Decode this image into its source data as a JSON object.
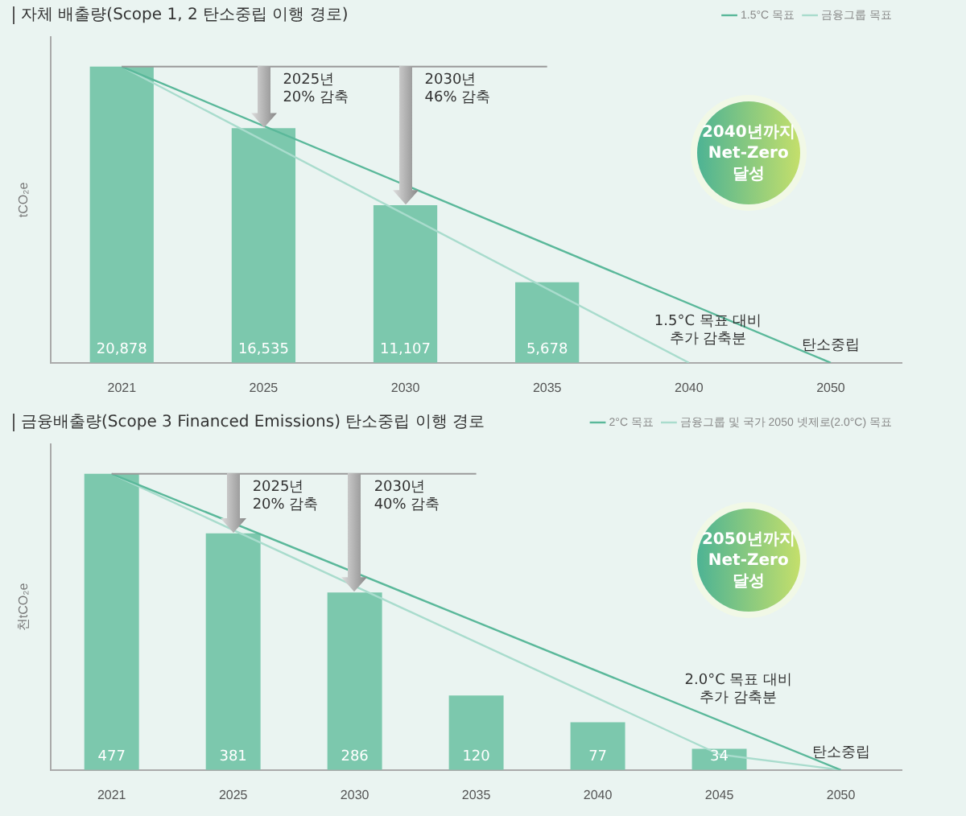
{
  "chart_data": [
    {
      "type": "bar",
      "title": "자체 배출량(Scope 1, 2 탄소중립 이행 경로)",
      "ylabel": "tCO₂e",
      "categories": [
        "2021",
        "2025",
        "2030",
        "2035",
        "2040",
        "2050"
      ],
      "legend": "top right",
      "marker": "none",
      "series": [
        {
          "color": "#7cc8ad",
          "values": [
            20878,
            16535,
            11107,
            5678,
            null,
            null
          ],
          "value_labels": [
            "20,878",
            "16,535",
            "11,107",
            "5,678",
            null,
            null
          ]
        },
        {
          "type": "line",
          "name": "1.5°C 목표",
          "color": "#5ab89a",
          "values": [
            20878,
            null,
            null,
            null,
            null,
            0
          ]
        },
        {
          "type": "line",
          "name": "금융그룹 목표",
          "color": "#a9dccd",
          "values": [
            20878,
            null,
            null,
            null,
            0,
            null
          ]
        }
      ],
      "ref_lines": [
        {
          "axis": "y",
          "value": 20878,
          "label": null
        }
      ],
      "annotations": [
        {
          "text": "2025년\n20% 감축",
          "x": "2025",
          "y": 20878
        },
        {
          "text": "2030년\n46% 감축",
          "x": "2030",
          "y": 20878
        },
        "1.5°C 목표 대비\n추가 감축분",
        {
          "text": "탄소중립",
          "x": "2050",
          "y": 0
        },
        "2040년까지\nNet-Zero\n달성"
      ]
    },
    {
      "type": "bar",
      "title": "금융배출량(Scope 3 Financed Emissions) 탄소중립 이행 경로",
      "ylabel": "천tCO₂e",
      "categories": [
        "2021",
        "2025",
        "2030",
        "2035",
        "2040",
        "2045",
        "2050"
      ],
      "legend": "top right",
      "marker": "none",
      "series": [
        {
          "color": "#7cc8ad",
          "values": [
            477,
            381,
            286,
            120,
            77,
            34,
            null
          ],
          "value_labels": [
            "477",
            "381",
            "286",
            "120",
            "77",
            "34",
            null
          ]
        },
        {
          "type": "line",
          "name": "2°C 목표",
          "color": "#5ab89a",
          "values": [
            477,
            null,
            null,
            null,
            null,
            null,
            0
          ]
        },
        {
          "type": "line",
          "name": "금융그룹 및 국가 2050 넷제로(2.0°C) 목표",
          "color": "#a9dccd",
          "values": [
            477,
            null,
            null,
            null,
            null,
            25,
            0
          ]
        }
      ],
      "ref_lines": [
        {
          "axis": "y",
          "value": 477,
          "label": null
        }
      ],
      "annotations": [
        {
          "text": "2025년\n20% 감축",
          "x": "2025",
          "y": 477
        },
        {
          "text": "2030년\n40% 감축",
          "x": "2030",
          "y": 477
        },
        "2.0°C 목표 대비\n추가 감축분",
        {
          "text": "탄소중립",
          "x": "2050",
          "y": 0
        },
        "2050년까지\nNet-Zero\n달성"
      ]
    }
  ]
}
